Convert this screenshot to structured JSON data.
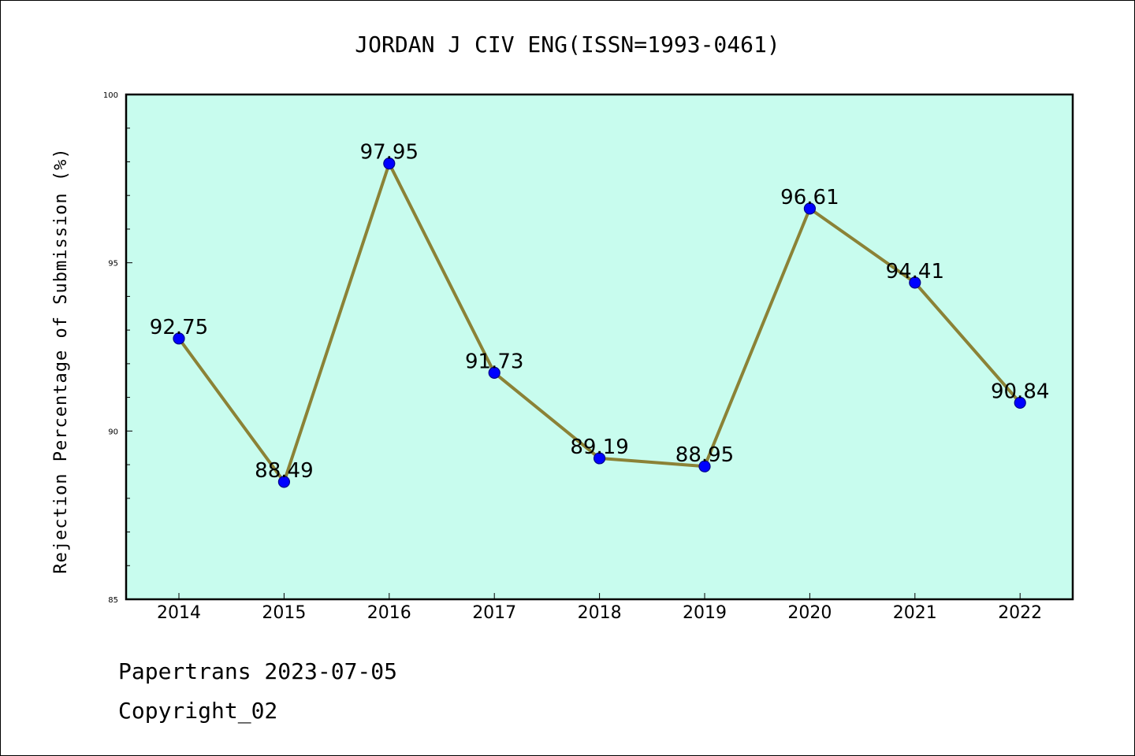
{
  "chart_data": {
    "type": "line",
    "title": "JORDAN J CIV ENG(ISSN=1993-0461)",
    "xlabel": "",
    "ylabel": "Rejection Percentage of Submission (%)",
    "categories": [
      "2014",
      "2015",
      "2016",
      "2017",
      "2018",
      "2019",
      "2020",
      "2021",
      "2022"
    ],
    "series": [
      {
        "values": [
          92.75,
          88.49,
          97.95,
          91.73,
          89.19,
          88.95,
          96.61,
          94.41,
          90.84
        ]
      }
    ],
    "data_labels": [
      "92.75",
      "88.49",
      "97.95",
      "91.73",
      "89.19",
      "88.95",
      "96.61",
      "94.41",
      "90.84"
    ],
    "ylim": [
      85,
      100
    ],
    "yticks": [
      "85",
      "90",
      "95",
      "100"
    ],
    "grid": false,
    "colors": {
      "plot_background": "#c8fcee",
      "line": "#8b8236",
      "marker": "#0000ff",
      "marker_edge": "#00008b"
    }
  },
  "footer": {
    "line1": "Papertrans 2023-07-05",
    "line2": "Copyright_02"
  }
}
